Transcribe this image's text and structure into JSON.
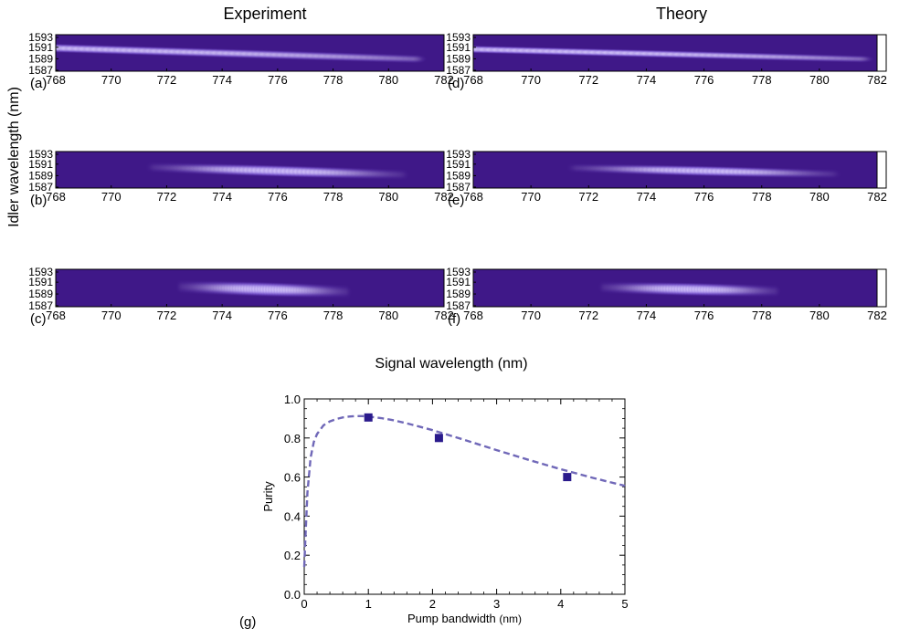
{
  "headers": {
    "left": "Experiment",
    "right": "Theory"
  },
  "shared_axis": {
    "ylabel": "Idler wavelength (nm)",
    "xlabel": "Signal wavelength (nm)"
  },
  "colors": {
    "background_low": "#3f1888",
    "mid": "#7a5cd6",
    "peak": "#ffffff",
    "curve": "#7068b8",
    "marker": "#2a1a8c"
  },
  "chart_data": [
    {
      "type": "heatmap",
      "panel": "(a)",
      "x_ticks": [
        "768",
        "770",
        "772",
        "774",
        "776",
        "778",
        "780",
        "782"
      ],
      "xlim": [
        768,
        782
      ],
      "y_ticks": [
        "1593",
        "1591",
        "1589",
        "1587"
      ],
      "ylim": [
        1587,
        1593
      ],
      "ridge": {
        "x_start": 768,
        "x_end": 781,
        "y_at_start": 1590.8,
        "y_at_end": 1589.0,
        "peak_intensity": 0.85,
        "sigma_y": 0.35
      }
    },
    {
      "type": "heatmap",
      "panel": "(b)",
      "x_ticks": [
        "768",
        "770",
        "772",
        "774",
        "776",
        "778",
        "780",
        "782"
      ],
      "xlim": [
        768,
        782
      ],
      "y_ticks": [
        "1593",
        "1591",
        "1589",
        "1587"
      ],
      "ylim": [
        1587,
        1593
      ],
      "ridge": {
        "x_start": 771.5,
        "x_end": 780.5,
        "y_at_start": 1590.4,
        "y_at_end": 1589.2,
        "center_x": 776,
        "peak_intensity": 1.0,
        "sigma_y": 0.45
      }
    },
    {
      "type": "heatmap",
      "panel": "(c)",
      "x_ticks": [
        "768",
        "770",
        "772",
        "774",
        "776",
        "778",
        "780",
        "782"
      ],
      "xlim": [
        768,
        782
      ],
      "y_ticks": [
        "1593",
        "1591",
        "1589",
        "1587"
      ],
      "ylim": [
        1587,
        1593
      ],
      "ridge": {
        "x_start": 772.5,
        "x_end": 778.5,
        "y_at_start": 1590.2,
        "y_at_end": 1589.4,
        "center_x": 775.5,
        "peak_intensity": 1.0,
        "sigma_y": 0.55
      }
    },
    {
      "type": "heatmap",
      "panel": "(d)",
      "x_ticks": [
        "768",
        "770",
        "772",
        "774",
        "776",
        "778",
        "780",
        "782"
      ],
      "xlim": [
        768,
        782
      ],
      "y_ticks": [
        "1593",
        "1591",
        "1589",
        "1587"
      ],
      "ylim": [
        1587,
        1593
      ],
      "ridge": {
        "x_start": 768,
        "x_end": 781.5,
        "y_at_start": 1590.6,
        "y_at_end": 1589.0,
        "peak_intensity": 0.95,
        "sigma_y": 0.3
      }
    },
    {
      "type": "heatmap",
      "panel": "(e)",
      "x_ticks": [
        "768",
        "770",
        "772",
        "774",
        "776",
        "778",
        "780",
        "782"
      ],
      "xlim": [
        768,
        782
      ],
      "y_ticks": [
        "1593",
        "1591",
        "1589",
        "1587"
      ],
      "ylim": [
        1587,
        1593
      ],
      "ridge": {
        "x_start": 771.5,
        "x_end": 780.5,
        "y_at_start": 1590.3,
        "y_at_end": 1589.3,
        "center_x": 776,
        "peak_intensity": 1.0,
        "sigma_y": 0.4
      }
    },
    {
      "type": "heatmap",
      "panel": "(f)",
      "x_ticks": [
        "768",
        "770",
        "772",
        "774",
        "776",
        "778",
        "780",
        "782"
      ],
      "xlim": [
        768,
        782
      ],
      "y_ticks": [
        "1593",
        "1591",
        "1589",
        "1587"
      ],
      "ylim": [
        1587,
        1593
      ],
      "ridge": {
        "x_start": 772.5,
        "x_end": 778.5,
        "y_at_start": 1590.1,
        "y_at_end": 1589.5,
        "center_x": 775.5,
        "peak_intensity": 1.0,
        "sigma_y": 0.5
      }
    },
    {
      "type": "scatter",
      "panel": "(g)",
      "xlabel": "Pump bandwidth",
      "xunit": "(nm)",
      "ylabel": "Purity",
      "xlim": [
        0,
        5
      ],
      "ylim": [
        0,
        1
      ],
      "x_ticks": [
        "0",
        "1",
        "2",
        "3",
        "4",
        "5"
      ],
      "y_ticks": [
        "0.0",
        "0.2",
        "0.4",
        "0.6",
        "0.8",
        "1.0"
      ],
      "points": [
        {
          "x": 1.0,
          "y": 0.905
        },
        {
          "x": 2.1,
          "y": 0.8
        },
        {
          "x": 4.1,
          "y": 0.6
        }
      ],
      "theory_curve": [
        {
          "x": 0.0,
          "y": 0.14
        },
        {
          "x": 0.02,
          "y": 0.3
        },
        {
          "x": 0.05,
          "y": 0.52
        },
        {
          "x": 0.1,
          "y": 0.7
        },
        {
          "x": 0.15,
          "y": 0.78
        },
        {
          "x": 0.2,
          "y": 0.82
        },
        {
          "x": 0.3,
          "y": 0.865
        },
        {
          "x": 0.4,
          "y": 0.885
        },
        {
          "x": 0.5,
          "y": 0.897
        },
        {
          "x": 0.6,
          "y": 0.905
        },
        {
          "x": 0.7,
          "y": 0.91
        },
        {
          "x": 0.8,
          "y": 0.912
        },
        {
          "x": 0.9,
          "y": 0.912
        },
        {
          "x": 1.0,
          "y": 0.91
        },
        {
          "x": 1.2,
          "y": 0.902
        },
        {
          "x": 1.4,
          "y": 0.89
        },
        {
          "x": 1.6,
          "y": 0.875
        },
        {
          "x": 1.8,
          "y": 0.858
        },
        {
          "x": 2.0,
          "y": 0.84
        },
        {
          "x": 2.2,
          "y": 0.82
        },
        {
          "x": 2.5,
          "y": 0.79
        },
        {
          "x": 3.0,
          "y": 0.738
        },
        {
          "x": 3.5,
          "y": 0.688
        },
        {
          "x": 4.0,
          "y": 0.64
        },
        {
          "x": 4.5,
          "y": 0.596
        },
        {
          "x": 5.0,
          "y": 0.555
        }
      ]
    }
  ]
}
